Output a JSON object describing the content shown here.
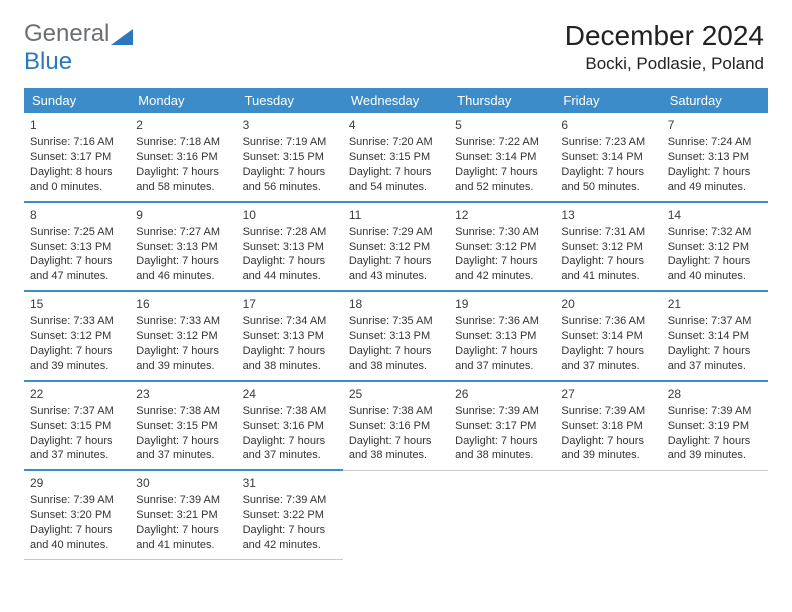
{
  "logo": {
    "word1": "General",
    "word2": "Blue"
  },
  "title": "December 2024",
  "location": "Bocki, Podlasie, Poland",
  "colors": {
    "header_bg": "#3b8cc9",
    "header_text": "#ffffff",
    "week_border": "#3b8cc9",
    "cell_border": "#c8c8c8",
    "logo_gray": "#6b6f73",
    "logo_blue": "#2b78bf"
  },
  "days_of_week": [
    "Sunday",
    "Monday",
    "Tuesday",
    "Wednesday",
    "Thursday",
    "Friday",
    "Saturday"
  ],
  "weekdata": [
    [
      {
        "n": "1",
        "sr": "7:16 AM",
        "ss": "3:17 PM",
        "dl1": "8 hours",
        "dl2": "and 0 minutes."
      },
      {
        "n": "2",
        "sr": "7:18 AM",
        "ss": "3:16 PM",
        "dl1": "7 hours",
        "dl2": "and 58 minutes."
      },
      {
        "n": "3",
        "sr": "7:19 AM",
        "ss": "3:15 PM",
        "dl1": "7 hours",
        "dl2": "and 56 minutes."
      },
      {
        "n": "4",
        "sr": "7:20 AM",
        "ss": "3:15 PM",
        "dl1": "7 hours",
        "dl2": "and 54 minutes."
      },
      {
        "n": "5",
        "sr": "7:22 AM",
        "ss": "3:14 PM",
        "dl1": "7 hours",
        "dl2": "and 52 minutes."
      },
      {
        "n": "6",
        "sr": "7:23 AM",
        "ss": "3:14 PM",
        "dl1": "7 hours",
        "dl2": "and 50 minutes."
      },
      {
        "n": "7",
        "sr": "7:24 AM",
        "ss": "3:13 PM",
        "dl1": "7 hours",
        "dl2": "and 49 minutes."
      }
    ],
    [
      {
        "n": "8",
        "sr": "7:25 AM",
        "ss": "3:13 PM",
        "dl1": "7 hours",
        "dl2": "and 47 minutes."
      },
      {
        "n": "9",
        "sr": "7:27 AM",
        "ss": "3:13 PM",
        "dl1": "7 hours",
        "dl2": "and 46 minutes."
      },
      {
        "n": "10",
        "sr": "7:28 AM",
        "ss": "3:13 PM",
        "dl1": "7 hours",
        "dl2": "and 44 minutes."
      },
      {
        "n": "11",
        "sr": "7:29 AM",
        "ss": "3:12 PM",
        "dl1": "7 hours",
        "dl2": "and 43 minutes."
      },
      {
        "n": "12",
        "sr": "7:30 AM",
        "ss": "3:12 PM",
        "dl1": "7 hours",
        "dl2": "and 42 minutes."
      },
      {
        "n": "13",
        "sr": "7:31 AM",
        "ss": "3:12 PM",
        "dl1": "7 hours",
        "dl2": "and 41 minutes."
      },
      {
        "n": "14",
        "sr": "7:32 AM",
        "ss": "3:12 PM",
        "dl1": "7 hours",
        "dl2": "and 40 minutes."
      }
    ],
    [
      {
        "n": "15",
        "sr": "7:33 AM",
        "ss": "3:12 PM",
        "dl1": "7 hours",
        "dl2": "and 39 minutes."
      },
      {
        "n": "16",
        "sr": "7:33 AM",
        "ss": "3:12 PM",
        "dl1": "7 hours",
        "dl2": "and 39 minutes."
      },
      {
        "n": "17",
        "sr": "7:34 AM",
        "ss": "3:13 PM",
        "dl1": "7 hours",
        "dl2": "and 38 minutes."
      },
      {
        "n": "18",
        "sr": "7:35 AM",
        "ss": "3:13 PM",
        "dl1": "7 hours",
        "dl2": "and 38 minutes."
      },
      {
        "n": "19",
        "sr": "7:36 AM",
        "ss": "3:13 PM",
        "dl1": "7 hours",
        "dl2": "and 37 minutes."
      },
      {
        "n": "20",
        "sr": "7:36 AM",
        "ss": "3:14 PM",
        "dl1": "7 hours",
        "dl2": "and 37 minutes."
      },
      {
        "n": "21",
        "sr": "7:37 AM",
        "ss": "3:14 PM",
        "dl1": "7 hours",
        "dl2": "and 37 minutes."
      }
    ],
    [
      {
        "n": "22",
        "sr": "7:37 AM",
        "ss": "3:15 PM",
        "dl1": "7 hours",
        "dl2": "and 37 minutes."
      },
      {
        "n": "23",
        "sr": "7:38 AM",
        "ss": "3:15 PM",
        "dl1": "7 hours",
        "dl2": "and 37 minutes."
      },
      {
        "n": "24",
        "sr": "7:38 AM",
        "ss": "3:16 PM",
        "dl1": "7 hours",
        "dl2": "and 37 minutes."
      },
      {
        "n": "25",
        "sr": "7:38 AM",
        "ss": "3:16 PM",
        "dl1": "7 hours",
        "dl2": "and 38 minutes."
      },
      {
        "n": "26",
        "sr": "7:39 AM",
        "ss": "3:17 PM",
        "dl1": "7 hours",
        "dl2": "and 38 minutes."
      },
      {
        "n": "27",
        "sr": "7:39 AM",
        "ss": "3:18 PM",
        "dl1": "7 hours",
        "dl2": "and 39 minutes."
      },
      {
        "n": "28",
        "sr": "7:39 AM",
        "ss": "3:19 PM",
        "dl1": "7 hours",
        "dl2": "and 39 minutes."
      }
    ],
    [
      {
        "n": "29",
        "sr": "7:39 AM",
        "ss": "3:20 PM",
        "dl1": "7 hours",
        "dl2": "and 40 minutes."
      },
      {
        "n": "30",
        "sr": "7:39 AM",
        "ss": "3:21 PM",
        "dl1": "7 hours",
        "dl2": "and 41 minutes."
      },
      {
        "n": "31",
        "sr": "7:39 AM",
        "ss": "3:22 PM",
        "dl1": "7 hours",
        "dl2": "and 42 minutes."
      },
      null,
      null,
      null,
      null
    ]
  ],
  "labels": {
    "sunrise": "Sunrise:",
    "sunset": "Sunset:",
    "daylight": "Daylight:"
  }
}
